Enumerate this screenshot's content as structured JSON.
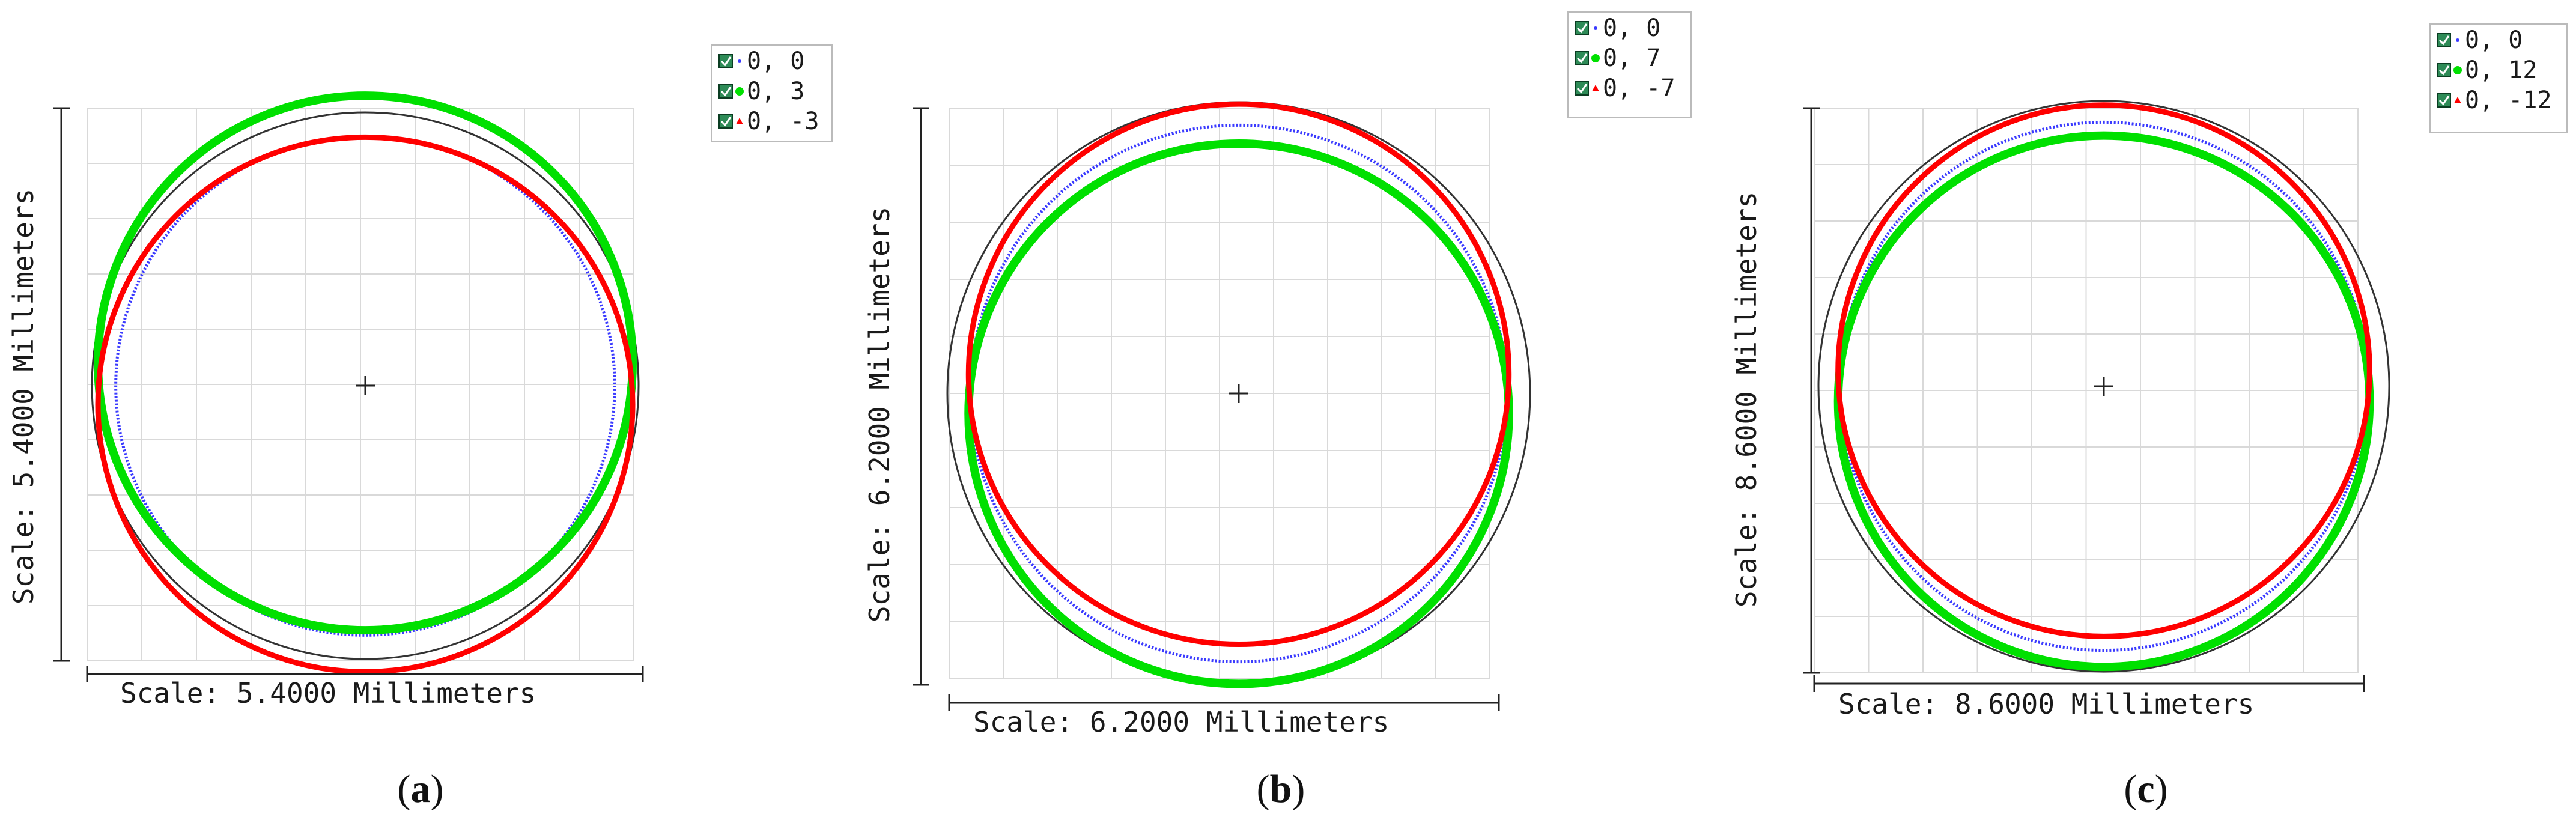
{
  "chart_data": [
    {
      "type": "scatter",
      "panel_label": "a",
      "xlabel": "Scale: 5.4000 Millimeters",
      "ylabel": "Scale: 5.4000 Millimeters",
      "scale_mm": 5.4,
      "grid": true,
      "legend_position": "top-right",
      "center_marker": "+",
      "aperture_diameter_mm": 5.4,
      "series": [
        {
          "name": "0, 0",
          "color": "#3a3aff",
          "marker": "small-dot",
          "diameter_mm": 5.04,
          "center_offset_y_mm": 0.0
        },
        {
          "name": "0, 3",
          "color": "#00e000",
          "marker": "dot",
          "diameter_mm": 5.4,
          "center_offset_y_mm": -0.23
        },
        {
          "name": "0, -3",
          "color": "#ff0000",
          "marker": "triangle",
          "diameter_mm": 5.4,
          "center_offset_y_mm": 0.19
        }
      ]
    },
    {
      "type": "scatter",
      "panel_label": "b",
      "xlabel": "Scale: 6.2000 Millimeters",
      "ylabel": "Scale: 6.2000 Millimeters",
      "scale_mm": 6.2,
      "grid": true,
      "legend_position": "top-right",
      "center_marker": "+",
      "aperture_diameter_mm": 6.2,
      "series": [
        {
          "name": "0, 0",
          "color": "#3a3aff",
          "marker": "small-dot",
          "diameter_mm": 5.83,
          "center_offset_y_mm": 0.0
        },
        {
          "name": "0, 7",
          "color": "#00e000",
          "marker": "dot",
          "diameter_mm": 5.87,
          "center_offset_y_mm": 0.22
        },
        {
          "name": "0, -7",
          "color": "#ff0000",
          "marker": "triangle",
          "diameter_mm": 5.87,
          "center_offset_y_mm": -0.21
        }
      ]
    },
    {
      "type": "scatter",
      "panel_label": "c",
      "xlabel": "Scale: 8.6000 Millimeters",
      "ylabel": "Scale: 8.6000 Millimeters",
      "scale_mm": 8.6,
      "grid": true,
      "legend_position": "top-right",
      "center_marker": "+",
      "aperture_diameter_mm": 8.6,
      "series": [
        {
          "name": "0, 0",
          "color": "#3a3aff",
          "marker": "small-dot",
          "diameter_mm": 8.13,
          "center_offset_y_mm": 0.0
        },
        {
          "name": "0, 12",
          "color": "#00e000",
          "marker": "dot",
          "diameter_mm": 8.18,
          "center_offset_y_mm": 0.23
        },
        {
          "name": "0, -12",
          "color": "#ff0000",
          "marker": "triangle",
          "diameter_mm": 8.18,
          "center_offset_y_mm": -0.24
        }
      ]
    }
  ],
  "colors": {
    "background": "#ffffff",
    "grid": "#d9d9d9",
    "frame": "#222222",
    "aperture": "#333333",
    "checkbox_fill": "#2e8b57"
  }
}
